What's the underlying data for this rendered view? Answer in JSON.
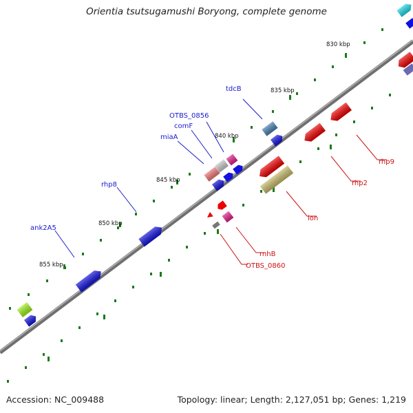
{
  "title": "Orientia tsutsugamushi Boryong, complete genome",
  "accession": "Accession: NC_009488",
  "summary": "Topology: linear; Length: 2,127,051 bp; Genes: 1,219",
  "colors": {
    "backbone": "#888888",
    "forward_label": "#1a1acc",
    "reverse_label": "#cc1111",
    "tick": "#1a7a1a",
    "forward_gene": "#1111dd",
    "reverse_gene": "#ee0000"
  },
  "scale_labels": [
    {
      "kbp": 830,
      "text": "830 kbp"
    },
    {
      "kbp": 835,
      "text": "835 kbp"
    },
    {
      "kbp": 840,
      "text": "840 kbp"
    },
    {
      "kbp": 845,
      "text": "845 kbp"
    },
    {
      "kbp": 850,
      "text": "850 kbp"
    },
    {
      "kbp": 855,
      "text": "855 kbp"
    }
  ],
  "gene_labels": [
    {
      "text": "tdcB",
      "strand": "forward"
    },
    {
      "text": "OTBS_0856",
      "strand": "forward"
    },
    {
      "text": "comF",
      "strand": "forward"
    },
    {
      "text": "miaA",
      "strand": "forward"
    },
    {
      "text": "rhp8",
      "strand": "forward"
    },
    {
      "text": "ank2A5",
      "strand": "forward"
    },
    {
      "text": "rhp9",
      "strand": "reverse"
    },
    {
      "text": "rhp2",
      "strand": "reverse"
    },
    {
      "text": "lon",
      "strand": "reverse"
    },
    {
      "text": "rnhB",
      "strand": "reverse"
    },
    {
      "text": "OTBS_0860",
      "strand": "reverse"
    }
  ]
}
